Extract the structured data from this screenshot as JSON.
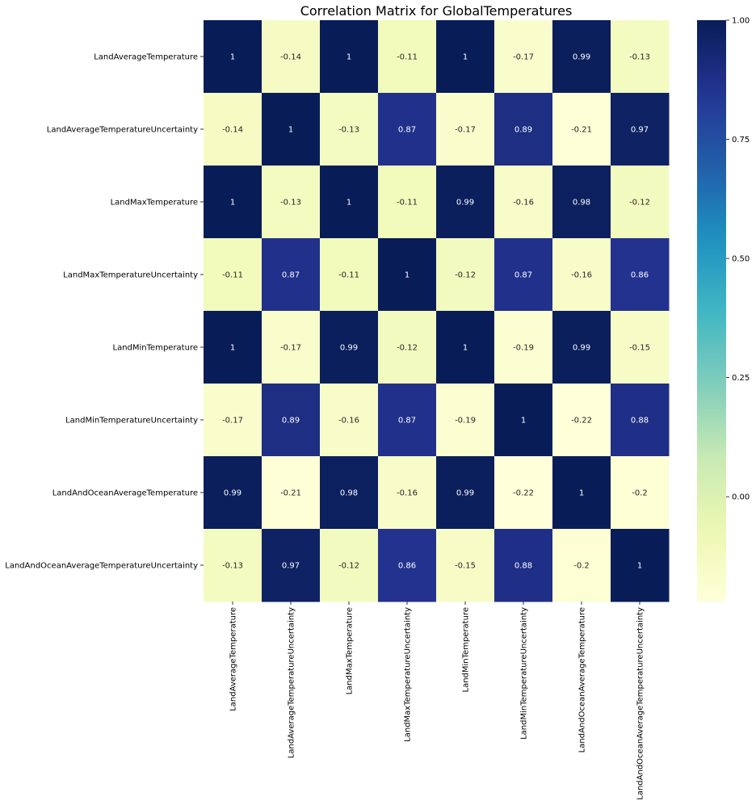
{
  "chart_data": {
    "type": "heatmap",
    "title": "Correlation Matrix for GlobalTemperatures",
    "labels": [
      "LandAverageTemperature",
      "LandAverageTemperatureUncertainty",
      "LandMaxTemperature",
      "LandMaxTemperatureUncertainty",
      "LandMinTemperature",
      "LandMinTemperatureUncertainty",
      "LandAndOceanAverageTemperature",
      "LandAndOceanAverageTemperatureUncertainty"
    ],
    "values": [
      [
        1,
        -0.14,
        1,
        -0.11,
        1,
        -0.17,
        0.99,
        -0.13
      ],
      [
        -0.14,
        1,
        -0.13,
        0.87,
        -0.17,
        0.89,
        -0.21,
        0.97
      ],
      [
        1,
        -0.13,
        1,
        -0.11,
        0.99,
        -0.16,
        0.98,
        -0.12
      ],
      [
        -0.11,
        0.87,
        -0.11,
        1,
        -0.12,
        0.87,
        -0.16,
        0.86
      ],
      [
        1,
        -0.17,
        0.99,
        -0.12,
        1,
        -0.19,
        0.99,
        -0.15
      ],
      [
        -0.17,
        0.89,
        -0.16,
        0.87,
        -0.19,
        1,
        -0.22,
        0.88
      ],
      [
        0.99,
        -0.21,
        0.98,
        -0.16,
        0.99,
        -0.22,
        1,
        -0.2
      ],
      [
        -0.13,
        0.97,
        -0.12,
        0.86,
        -0.15,
        0.88,
        -0.2,
        1
      ]
    ],
    "colormap": "YlGnBu",
    "colorbar": {
      "range": [
        -0.22,
        1.0
      ],
      "ticks": [
        0.0,
        0.25,
        0.5,
        0.75,
        1.0
      ],
      "tick_labels": [
        "0.00",
        "0.25",
        "0.50",
        "0.75",
        "1.00"
      ]
    },
    "annotations": true
  }
}
